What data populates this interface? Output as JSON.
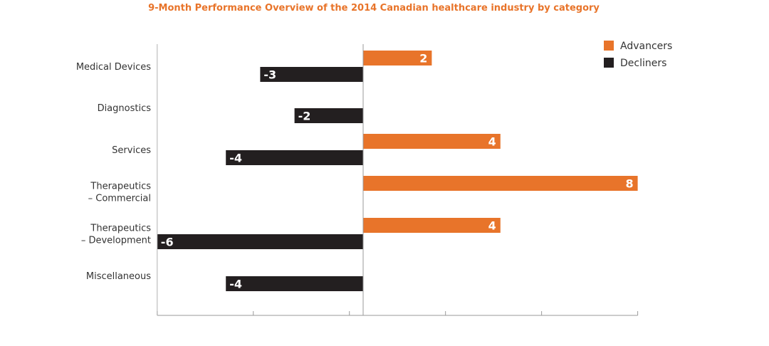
{
  "chart_data": {
    "type": "bar",
    "orientation": "horizontal",
    "title": "9-Month Performance Overview of the 2014 Canadian healthcare industry by category",
    "categories": [
      [
        "Medical Devices"
      ],
      [
        "Diagnostics"
      ],
      [
        "Services"
      ],
      [
        "Therapeutics",
        "– Commercial"
      ],
      [
        "Therapeutics",
        "– Development"
      ],
      [
        "Miscellaneous"
      ]
    ],
    "series": [
      {
        "name": "Advancers",
        "color": "#e8742a",
        "values": [
          2,
          null,
          4,
          8,
          4,
          null
        ]
      },
      {
        "name": "Decliners",
        "color": "#231f20",
        "values": [
          -3,
          -2,
          -4,
          null,
          -6,
          -4
        ]
      }
    ],
    "data_labels": {
      "Advancers": [
        "2",
        "",
        "4",
        "8",
        "4",
        ""
      ],
      "Decliners": [
        "-3",
        "-2",
        "-4",
        "",
        "-6",
        "-4"
      ]
    },
    "xlim": [
      -6,
      8
    ],
    "grid": false,
    "legend_position": "top-right"
  }
}
